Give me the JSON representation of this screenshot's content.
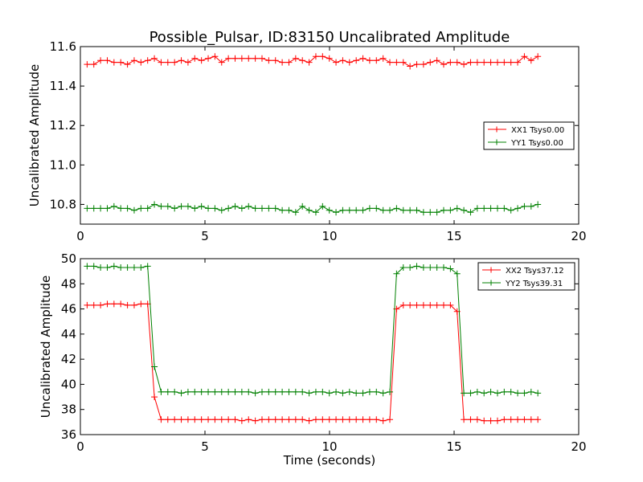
{
  "chart_data": [
    {
      "type": "line",
      "title": "Possible_Pulsar, ID:83150 Uncalibrated Amplitude",
      "xlabel": "",
      "ylabel": "Uncalibrated Amplitude",
      "xlim": [
        0,
        20
      ],
      "ylim": [
        10.7,
        11.6
      ],
      "xticks": [
        "0",
        "5",
        "10",
        "15",
        "20"
      ],
      "yticks": [
        "10.8",
        "11.0",
        "11.2",
        "11.4",
        "11.6"
      ],
      "grid": false,
      "legend_position": "right",
      "x": [
        0.27,
        0.54,
        0.81,
        1.08,
        1.35,
        1.62,
        1.89,
        2.16,
        2.43,
        2.7,
        2.97,
        3.24,
        3.51,
        3.78,
        4.05,
        4.32,
        4.59,
        4.86,
        5.13,
        5.4,
        5.67,
        5.94,
        6.21,
        6.48,
        6.75,
        7.02,
        7.29,
        7.56,
        7.83,
        8.1,
        8.37,
        8.64,
        8.91,
        9.18,
        9.45,
        9.72,
        9.99,
        10.26,
        10.53,
        10.8,
        11.07,
        11.34,
        11.61,
        11.88,
        12.15,
        12.42,
        12.69,
        12.96,
        13.23,
        13.5,
        13.77,
        14.04,
        14.31,
        14.58,
        14.85,
        15.12,
        15.39,
        15.66,
        15.93,
        16.2,
        16.47,
        16.74,
        17.01,
        17.28,
        17.55,
        17.82,
        18.09,
        18.36
      ],
      "series": [
        {
          "name": "XX1 Tsys0.00",
          "color": "#ff0000",
          "values": [
            11.51,
            11.51,
            11.53,
            11.53,
            11.52,
            11.52,
            11.51,
            11.53,
            11.52,
            11.53,
            11.54,
            11.52,
            11.52,
            11.52,
            11.53,
            11.52,
            11.54,
            11.53,
            11.54,
            11.55,
            11.52,
            11.54,
            11.54,
            11.54,
            11.54,
            11.54,
            11.54,
            11.53,
            11.53,
            11.52,
            11.52,
            11.54,
            11.53,
            11.52,
            11.55,
            11.55,
            11.54,
            11.52,
            11.53,
            11.52,
            11.53,
            11.54,
            11.53,
            11.53,
            11.54,
            11.52,
            11.52,
            11.52,
            11.5,
            11.51,
            11.51,
            11.52,
            11.53,
            11.51,
            11.52,
            11.52,
            11.51,
            11.52,
            11.52,
            11.52,
            11.52,
            11.52,
            11.52,
            11.52,
            11.52,
            11.55,
            11.53,
            11.55
          ]
        },
        {
          "name": "YY1 Tsys0.00",
          "color": "#008000",
          "values": [
            10.78,
            10.78,
            10.78,
            10.78,
            10.79,
            10.78,
            10.78,
            10.77,
            10.78,
            10.78,
            10.8,
            10.79,
            10.79,
            10.78,
            10.79,
            10.79,
            10.78,
            10.79,
            10.78,
            10.78,
            10.77,
            10.78,
            10.79,
            10.78,
            10.79,
            10.78,
            10.78,
            10.78,
            10.78,
            10.77,
            10.77,
            10.76,
            10.79,
            10.77,
            10.76,
            10.79,
            10.77,
            10.76,
            10.77,
            10.77,
            10.77,
            10.77,
            10.78,
            10.78,
            10.77,
            10.77,
            10.78,
            10.77,
            10.77,
            10.77,
            10.76,
            10.76,
            10.76,
            10.77,
            10.77,
            10.78,
            10.77,
            10.76,
            10.78,
            10.78,
            10.78,
            10.78,
            10.78,
            10.77,
            10.78,
            10.79,
            10.79,
            10.8
          ]
        }
      ]
    },
    {
      "type": "line",
      "title": "",
      "xlabel": "Time (seconds)",
      "ylabel": "Uncalibrated Amplitude",
      "xlim": [
        0,
        20
      ],
      "ylim": [
        36,
        50
      ],
      "xticks": [
        "0",
        "5",
        "10",
        "15",
        "20"
      ],
      "yticks": [
        "36",
        "38",
        "40",
        "42",
        "44",
        "46",
        "48",
        "50"
      ],
      "grid": false,
      "legend_position": "top-right",
      "x": [
        0.27,
        0.54,
        0.81,
        1.08,
        1.35,
        1.62,
        1.89,
        2.16,
        2.43,
        2.7,
        2.97,
        3.24,
        3.51,
        3.78,
        4.05,
        4.32,
        4.59,
        4.86,
        5.13,
        5.4,
        5.67,
        5.94,
        6.21,
        6.48,
        6.75,
        7.02,
        7.29,
        7.56,
        7.83,
        8.1,
        8.37,
        8.64,
        8.91,
        9.18,
        9.45,
        9.72,
        9.99,
        10.26,
        10.53,
        10.8,
        11.07,
        11.34,
        11.61,
        11.88,
        12.15,
        12.42,
        12.69,
        12.96,
        13.23,
        13.5,
        13.77,
        14.04,
        14.31,
        14.58,
        14.85,
        15.12,
        15.39,
        15.66,
        15.93,
        16.2,
        16.47,
        16.74,
        17.01,
        17.28,
        17.55,
        17.82,
        18.09,
        18.36
      ],
      "series": [
        {
          "name": "XX2 Tsys37.12",
          "color": "#ff0000",
          "values": [
            46.3,
            46.3,
            46.3,
            46.4,
            46.4,
            46.4,
            46.3,
            46.3,
            46.4,
            46.4,
            39.0,
            37.2,
            37.2,
            37.2,
            37.2,
            37.2,
            37.2,
            37.2,
            37.2,
            37.2,
            37.2,
            37.2,
            37.2,
            37.1,
            37.2,
            37.1,
            37.2,
            37.2,
            37.2,
            37.2,
            37.2,
            37.2,
            37.2,
            37.1,
            37.2,
            37.2,
            37.2,
            37.2,
            37.2,
            37.2,
            37.2,
            37.2,
            37.2,
            37.2,
            37.1,
            37.2,
            46.0,
            46.3,
            46.3,
            46.3,
            46.3,
            46.3,
            46.3,
            46.3,
            46.3,
            45.8,
            37.2,
            37.2,
            37.2,
            37.1,
            37.1,
            37.1,
            37.2,
            37.2,
            37.2,
            37.2,
            37.2,
            37.2
          ]
        },
        {
          "name": "YY2 Tsys39.31",
          "color": "#008000",
          "values": [
            49.4,
            49.4,
            49.3,
            49.3,
            49.4,
            49.3,
            49.3,
            49.3,
            49.3,
            49.4,
            41.4,
            39.4,
            39.4,
            39.4,
            39.3,
            39.4,
            39.4,
            39.4,
            39.4,
            39.4,
            39.4,
            39.4,
            39.4,
            39.4,
            39.4,
            39.3,
            39.4,
            39.4,
            39.4,
            39.4,
            39.4,
            39.4,
            39.4,
            39.3,
            39.4,
            39.4,
            39.3,
            39.4,
            39.3,
            39.4,
            39.3,
            39.3,
            39.4,
            39.4,
            39.3,
            39.4,
            48.8,
            49.3,
            49.3,
            49.4,
            49.3,
            49.3,
            49.3,
            49.3,
            49.2,
            48.8,
            39.3,
            39.3,
            39.4,
            39.3,
            39.4,
            39.3,
            39.4,
            39.4,
            39.3,
            39.3,
            39.4,
            39.3
          ]
        }
      ]
    }
  ]
}
